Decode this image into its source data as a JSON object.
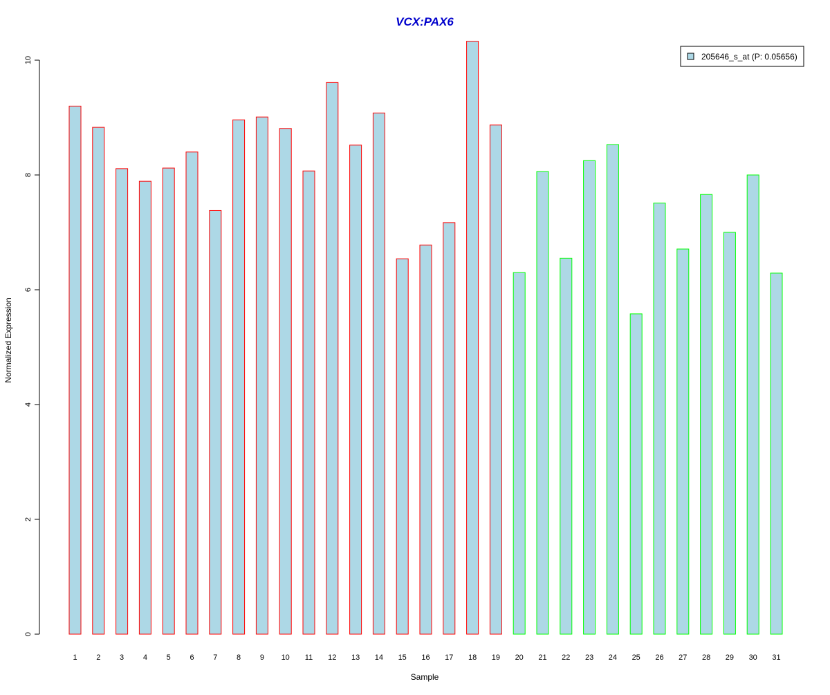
{
  "colors": {
    "bar_fill": "#add8e6",
    "group1_border": "#ff0000",
    "group2_border": "#00ff00",
    "title": "#0000cc",
    "axis": "#000000"
  },
  "chart_data": {
    "type": "bar",
    "title": "VCX:PAX6",
    "xlabel": "Sample",
    "ylabel": "Normalized Expression",
    "ylim": [
      0,
      10.4
    ],
    "yticks": [
      0,
      2,
      4,
      6,
      8,
      10
    ],
    "grid": false,
    "legend_position": "top-right",
    "categories": [
      "1",
      "2",
      "3",
      "4",
      "5",
      "6",
      "7",
      "8",
      "9",
      "10",
      "11",
      "12",
      "13",
      "14",
      "15",
      "16",
      "17",
      "18",
      "19",
      "20",
      "21",
      "22",
      "23",
      "24",
      "25",
      "26",
      "27",
      "28",
      "29",
      "30",
      "31"
    ],
    "series": [
      {
        "name": "205646_s_at (P: 0.05656)",
        "values": [
          9.2,
          8.83,
          8.11,
          7.89,
          8.12,
          8.4,
          7.38,
          8.96,
          9.01,
          8.81,
          8.07,
          9.61,
          8.52,
          9.08,
          6.54,
          6.78,
          7.17,
          10.33,
          8.87,
          6.3,
          8.06,
          6.55,
          8.25,
          8.53,
          5.58,
          7.51,
          6.71,
          7.66,
          7.0,
          8.0,
          6.29
        ],
        "groups": [
          1,
          1,
          1,
          1,
          1,
          1,
          1,
          1,
          1,
          1,
          1,
          1,
          1,
          1,
          1,
          1,
          1,
          1,
          1,
          2,
          2,
          2,
          2,
          2,
          2,
          2,
          2,
          2,
          2,
          2,
          2
        ]
      }
    ]
  }
}
